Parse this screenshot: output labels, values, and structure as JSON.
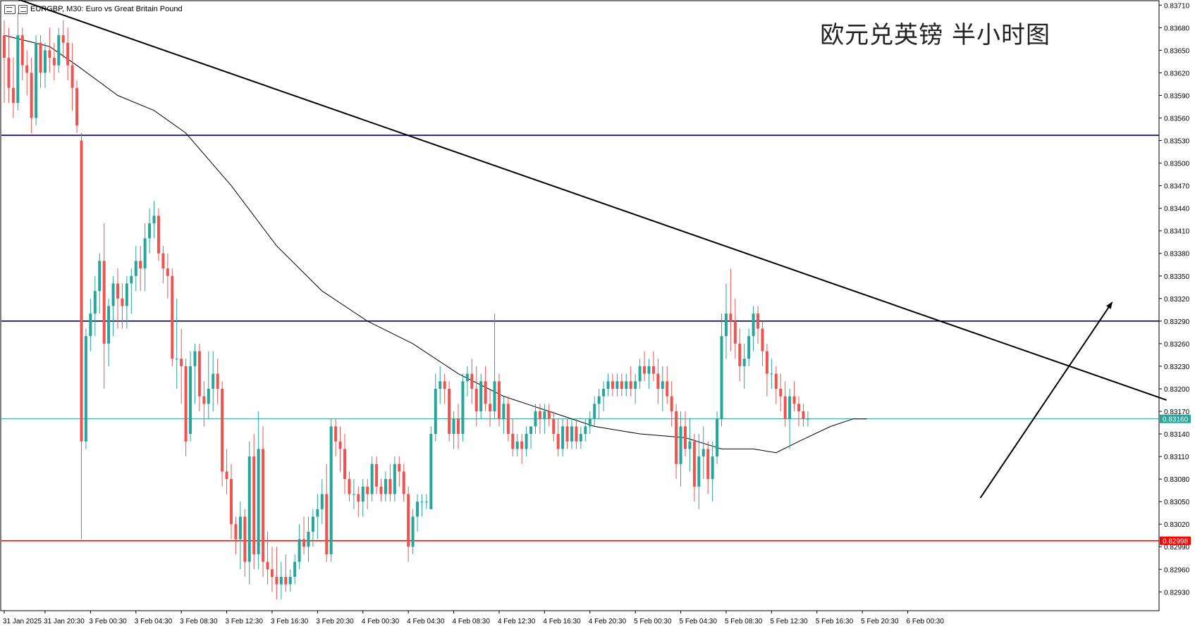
{
  "header": {
    "title": "EURGBP, M30:  Euro vs Great Britain Pound",
    "icons": [
      "chart-menu-icon",
      "object-list-icon"
    ]
  },
  "watermark": "欧元兑英镑 半小时图",
  "colors": {
    "bull": "#26a69a",
    "bear": "#ef5350",
    "ma": "#000000",
    "trendline": "#000000",
    "resistance": "#000080",
    "support": "#ff0000",
    "current_price_line": "#26a69a",
    "price_label_bg_current": "#26a69a",
    "price_label_bg_support": "#ff0000"
  },
  "chart_data": {
    "type": "candlestick",
    "title": "EURGBP, M30: Euro vs Great Britain Pound",
    "symbol": "EURGBP",
    "timeframe": "M30",
    "y_axis": {
      "position": "right",
      "ylim": [
        0.82905,
        0.83715
      ],
      "ticks": [
        "0.83710",
        "0.83680",
        "0.83650",
        "0.83620",
        "0.83590",
        "0.83560",
        "0.83530",
        "0.83500",
        "0.83470",
        "0.83440",
        "0.83410",
        "0.83380",
        "0.83350",
        "0.83320",
        "0.83290",
        "0.83260",
        "0.83230",
        "0.83200",
        "0.83170",
        "0.83140",
        "0.83110",
        "0.83080",
        "0.83050",
        "0.83020",
        "0.82990",
        "0.82960",
        "0.82930"
      ]
    },
    "x_axis": {
      "position": "bottom",
      "labels": [
        {
          "i": 0,
          "text": "31 Jan 2025"
        },
        {
          "i": 9,
          "text": "31 Jan 20:30"
        },
        {
          "i": 19,
          "text": "3 Feb 00:30"
        },
        {
          "i": 29,
          "text": "3 Feb 04:30"
        },
        {
          "i": 39,
          "text": "3 Feb 08:30"
        },
        {
          "i": 49,
          "text": "3 Feb 12:30"
        },
        {
          "i": 59,
          "text": "3 Feb 16:30"
        },
        {
          "i": 69,
          "text": "3 Feb 20:30"
        },
        {
          "i": 79,
          "text": "4 Feb 00:30"
        },
        {
          "i": 89,
          "text": "4 Feb 04:30"
        },
        {
          "i": 99,
          "text": "4 Feb 08:30"
        },
        {
          "i": 109,
          "text": "4 Feb 12:30"
        },
        {
          "i": 119,
          "text": "4 Feb 16:30"
        },
        {
          "i": 129,
          "text": "4 Feb 20:30"
        },
        {
          "i": 139,
          "text": "5 Feb 00:30"
        },
        {
          "i": 149,
          "text": "5 Feb 04:30"
        },
        {
          "i": 159,
          "text": "5 Feb 08:30"
        },
        {
          "i": 169,
          "text": "5 Feb 12:30"
        },
        {
          "i": 179,
          "text": "5 Feb 16:30"
        },
        {
          "i": 189,
          "text": "5 Feb 20:30"
        },
        {
          "i": 199,
          "text": "6 Feb 00:30"
        }
      ]
    },
    "candles": [
      [
        0.8367,
        0.8369,
        0.8358,
        0.8364
      ],
      [
        0.8364,
        0.8368,
        0.8358,
        0.836
      ],
      [
        0.836,
        0.8364,
        0.8356,
        0.8358
      ],
      [
        0.8358,
        0.837,
        0.8357,
        0.8367
      ],
      [
        0.8367,
        0.8368,
        0.8361,
        0.8363
      ],
      [
        0.8363,
        0.8365,
        0.8359,
        0.8362
      ],
      [
        0.8362,
        0.8364,
        0.8354,
        0.8356
      ],
      [
        0.8356,
        0.8367,
        0.8355,
        0.8366
      ],
      [
        0.8366,
        0.8367,
        0.836,
        0.8362
      ],
      [
        0.8362,
        0.8366,
        0.836,
        0.8365
      ],
      [
        0.8365,
        0.8368,
        0.8362,
        0.8364
      ],
      [
        0.8364,
        0.8366,
        0.8361,
        0.8363
      ],
      [
        0.8363,
        0.8368,
        0.8362,
        0.8367
      ],
      [
        0.8367,
        0.8369,
        0.8364,
        0.8366
      ],
      [
        0.8366,
        0.8368,
        0.8361,
        0.8363
      ],
      [
        0.8363,
        0.8366,
        0.8357,
        0.836
      ],
      [
        0.836,
        0.8361,
        0.8354,
        0.8355
      ],
      [
        0.8353,
        0.8354,
        0.83,
        0.8313
      ],
      [
        0.8313,
        0.8328,
        0.8312,
        0.8327
      ],
      [
        0.8327,
        0.8332,
        0.8325,
        0.833
      ],
      [
        0.833,
        0.8335,
        0.8327,
        0.8333
      ],
      [
        0.8333,
        0.8338,
        0.833,
        0.8337
      ],
      [
        0.8337,
        0.8342,
        0.832,
        0.8326
      ],
      [
        0.8326,
        0.8332,
        0.8323,
        0.8331
      ],
      [
        0.8331,
        0.8335,
        0.8327,
        0.8334
      ],
      [
        0.8334,
        0.8336,
        0.8328,
        0.8332
      ],
      [
        0.8332,
        0.8334,
        0.8328,
        0.8331
      ],
      [
        0.8331,
        0.8335,
        0.8328,
        0.8334
      ],
      [
        0.8334,
        0.8336,
        0.833,
        0.8335
      ],
      [
        0.8335,
        0.8339,
        0.8333,
        0.8337
      ],
      [
        0.8337,
        0.8339,
        0.8333,
        0.8336
      ],
      [
        0.8336,
        0.8342,
        0.8333,
        0.834
      ],
      [
        0.834,
        0.8344,
        0.8338,
        0.8342
      ],
      [
        0.8342,
        0.8345,
        0.834,
        0.8343
      ],
      [
        0.8343,
        0.8344,
        0.8337,
        0.8338
      ],
      [
        0.8338,
        0.8339,
        0.8334,
        0.8336
      ],
      [
        0.8336,
        0.8338,
        0.8332,
        0.8335
      ],
      [
        0.8335,
        0.8336,
        0.8323,
        0.8324
      ],
      [
        0.8324,
        0.8332,
        0.832,
        0.8324
      ],
      [
        0.8324,
        0.8328,
        0.8318,
        0.8323
      ],
      [
        0.8323,
        0.8324,
        0.8311,
        0.8313
      ],
      [
        0.8314,
        0.8325,
        0.8313,
        0.8323
      ],
      [
        0.8323,
        0.8326,
        0.8318,
        0.8325
      ],
      [
        0.8325,
        0.8326,
        0.8317,
        0.8319
      ],
      [
        0.8319,
        0.8321,
        0.8315,
        0.8318
      ],
      [
        0.8318,
        0.8325,
        0.8316,
        0.832
      ],
      [
        0.832,
        0.8325,
        0.8317,
        0.8322
      ],
      [
        0.8322,
        0.8324,
        0.8318,
        0.832
      ],
      [
        0.832,
        0.8321,
        0.8307,
        0.8309
      ],
      [
        0.8309,
        0.8312,
        0.8306,
        0.8308
      ],
      [
        0.8308,
        0.831,
        0.83,
        0.8302
      ],
      [
        0.8302,
        0.8303,
        0.8298,
        0.83
      ],
      [
        0.83,
        0.8305,
        0.8296,
        0.8303
      ],
      [
        0.8303,
        0.8304,
        0.8295,
        0.8297
      ],
      [
        0.8297,
        0.8313,
        0.8294,
        0.8311
      ],
      [
        0.8311,
        0.8314,
        0.8296,
        0.8298
      ],
      [
        0.8298,
        0.8317,
        0.8296,
        0.8312
      ],
      [
        0.8312,
        0.8315,
        0.8295,
        0.8297
      ],
      [
        0.8297,
        0.8301,
        0.8294,
        0.8296
      ],
      [
        0.8296,
        0.8299,
        0.8293,
        0.8295
      ],
      [
        0.8295,
        0.8299,
        0.8292,
        0.8294
      ],
      [
        0.8294,
        0.8297,
        0.8292,
        0.8295
      ],
      [
        0.8295,
        0.8298,
        0.8293,
        0.8294
      ],
      [
        0.8294,
        0.8296,
        0.8293,
        0.8295
      ],
      [
        0.8295,
        0.8298,
        0.8294,
        0.8297
      ],
      [
        0.8297,
        0.8302,
        0.8296,
        0.83
      ],
      [
        0.83,
        0.8303,
        0.8298,
        0.8299
      ],
      [
        0.8299,
        0.8303,
        0.8297,
        0.8301
      ],
      [
        0.8301,
        0.8304,
        0.8299,
        0.8303
      ],
      [
        0.8303,
        0.8306,
        0.83,
        0.8304
      ],
      [
        0.8304,
        0.8308,
        0.8302,
        0.8306
      ],
      [
        0.8306,
        0.831,
        0.8297,
        0.8298
      ],
      [
        0.8298,
        0.8316,
        0.8297,
        0.8315
      ],
      [
        0.8315,
        0.8316,
        0.8311,
        0.8313
      ],
      [
        0.8313,
        0.8315,
        0.8309,
        0.8312
      ],
      [
        0.8312,
        0.8314,
        0.8306,
        0.8308
      ],
      [
        0.8308,
        0.8309,
        0.8305,
        0.8306
      ],
      [
        0.8306,
        0.8308,
        0.8304,
        0.8306
      ],
      [
        0.8306,
        0.8307,
        0.8303,
        0.8305
      ],
      [
        0.8305,
        0.8308,
        0.8303,
        0.8307
      ],
      [
        0.8307,
        0.8308,
        0.8304,
        0.8306
      ],
      [
        0.8306,
        0.8311,
        0.8305,
        0.831
      ],
      [
        0.831,
        0.8311,
        0.8306,
        0.8307
      ],
      [
        0.8307,
        0.8308,
        0.8305,
        0.8306
      ],
      [
        0.8306,
        0.8309,
        0.8305,
        0.8308
      ],
      [
        0.8308,
        0.831,
        0.8305,
        0.8306
      ],
      [
        0.8306,
        0.8311,
        0.8305,
        0.831
      ],
      [
        0.831,
        0.8311,
        0.8307,
        0.8309
      ],
      [
        0.8309,
        0.831,
        0.8305,
        0.8306
      ],
      [
        0.8306,
        0.8307,
        0.8297,
        0.8299
      ],
      [
        0.8299,
        0.8304,
        0.8298,
        0.8303
      ],
      [
        0.8303,
        0.8306,
        0.8301,
        0.8305
      ],
      [
        0.8305,
        0.8306,
        0.8303,
        0.8305
      ],
      [
        0.8305,
        0.8306,
        0.8304,
        0.8305
      ],
      [
        0.8304,
        0.8315,
        0.8304,
        0.8314
      ],
      [
        0.8314,
        0.8322,
        0.8313,
        0.832
      ],
      [
        0.832,
        0.8323,
        0.8318,
        0.8321
      ],
      [
        0.8321,
        0.8322,
        0.8318,
        0.832
      ],
      [
        0.832,
        0.8321,
        0.8313,
        0.8314
      ],
      [
        0.8314,
        0.8317,
        0.8312,
        0.8316
      ],
      [
        0.8316,
        0.8318,
        0.8312,
        0.8314
      ],
      [
        0.8314,
        0.8322,
        0.8313,
        0.8321
      ],
      [
        0.8321,
        0.8323,
        0.8319,
        0.8322
      ],
      [
        0.8322,
        0.8324,
        0.8318,
        0.832
      ],
      [
        0.832,
        0.8323,
        0.8315,
        0.8317
      ],
      [
        0.8317,
        0.8322,
        0.8316,
        0.8321
      ],
      [
        0.8321,
        0.8323,
        0.8317,
        0.8318
      ],
      [
        0.8318,
        0.832,
        0.8315,
        0.8317
      ],
      [
        0.8317,
        0.833,
        0.8316,
        0.8321
      ],
      [
        0.8321,
        0.8322,
        0.8315,
        0.8316
      ],
      [
        0.8316,
        0.8319,
        0.8314,
        0.8318
      ],
      [
        0.8318,
        0.8319,
        0.8313,
        0.8314
      ],
      [
        0.8314,
        0.8316,
        0.8311,
        0.8312
      ],
      [
        0.8312,
        0.8314,
        0.8311,
        0.8313
      ],
      [
        0.8313,
        0.8314,
        0.831,
        0.8312
      ],
      [
        0.8312,
        0.8315,
        0.8311,
        0.8314
      ],
      [
        0.8314,
        0.8315,
        0.8312,
        0.8315
      ],
      [
        0.8315,
        0.8318,
        0.8314,
        0.8317
      ],
      [
        0.8317,
        0.8318,
        0.8314,
        0.8316
      ],
      [
        0.8316,
        0.8318,
        0.8314,
        0.8317
      ],
      [
        0.8317,
        0.8318,
        0.8315,
        0.8316
      ],
      [
        0.8316,
        0.8317,
        0.8313,
        0.8314
      ],
      [
        0.8314,
        0.8316,
        0.8311,
        0.8312
      ],
      [
        0.8312,
        0.8316,
        0.8311,
        0.8315
      ],
      [
        0.8315,
        0.8316,
        0.8312,
        0.8313
      ],
      [
        0.8313,
        0.8316,
        0.8312,
        0.8315
      ],
      [
        0.8315,
        0.8316,
        0.8312,
        0.8313
      ],
      [
        0.8313,
        0.8315,
        0.8312,
        0.8314
      ],
      [
        0.8314,
        0.8316,
        0.8313,
        0.8315
      ],
      [
        0.8315,
        0.8317,
        0.8314,
        0.8316
      ],
      [
        0.8316,
        0.8319,
        0.8315,
        0.8318
      ],
      [
        0.8318,
        0.832,
        0.8316,
        0.8319
      ],
      [
        0.8319,
        0.8321,
        0.8317,
        0.832
      ],
      [
        0.832,
        0.8322,
        0.8319,
        0.8321
      ],
      [
        0.8321,
        0.8322,
        0.8319,
        0.832
      ],
      [
        0.832,
        0.8322,
        0.8319,
        0.8321
      ],
      [
        0.8321,
        0.8322,
        0.8319,
        0.832
      ],
      [
        0.832,
        0.8322,
        0.8319,
        0.8321
      ],
      [
        0.8321,
        0.8323,
        0.8319,
        0.832
      ],
      [
        0.832,
        0.8322,
        0.8318,
        0.8321
      ],
      [
        0.8321,
        0.8324,
        0.832,
        0.8323
      ],
      [
        0.8323,
        0.8325,
        0.8321,
        0.8322
      ],
      [
        0.8322,
        0.8324,
        0.832,
        0.8323
      ],
      [
        0.8323,
        0.8325,
        0.8321,
        0.8322
      ],
      [
        0.8322,
        0.8324,
        0.8318,
        0.832
      ],
      [
        0.832,
        0.8323,
        0.8317,
        0.8321
      ],
      [
        0.8321,
        0.8323,
        0.8318,
        0.8319
      ],
      [
        0.8319,
        0.8321,
        0.8315,
        0.8317
      ],
      [
        0.8317,
        0.8318,
        0.8308,
        0.831
      ],
      [
        0.831,
        0.8317,
        0.8307,
        0.8315
      ],
      [
        0.8315,
        0.8317,
        0.8311,
        0.8312
      ],
      [
        0.8312,
        0.8316,
        0.8309,
        0.8313
      ],
      [
        0.8313,
        0.8314,
        0.8305,
        0.8307
      ],
      [
        0.8307,
        0.8314,
        0.8304,
        0.8311
      ],
      [
        0.8311,
        0.8315,
        0.8308,
        0.8312
      ],
      [
        0.8312,
        0.8313,
        0.8306,
        0.8308
      ],
      [
        0.8308,
        0.8313,
        0.8305,
        0.8311
      ],
      [
        0.8311,
        0.8317,
        0.831,
        0.8316
      ],
      [
        0.8316,
        0.833,
        0.8315,
        0.8327
      ],
      [
        0.8327,
        0.8334,
        0.8324,
        0.833
      ],
      [
        0.833,
        0.8336,
        0.8325,
        0.8329
      ],
      [
        0.8329,
        0.8332,
        0.8324,
        0.8326
      ],
      [
        0.8326,
        0.8328,
        0.8321,
        0.8323
      ],
      [
        0.8323,
        0.8326,
        0.832,
        0.8324
      ],
      [
        0.8324,
        0.8328,
        0.8323,
        0.8327
      ],
      [
        0.8327,
        0.8331,
        0.8325,
        0.833
      ],
      [
        0.833,
        0.8331,
        0.8326,
        0.8328
      ],
      [
        0.8328,
        0.8329,
        0.8323,
        0.8325
      ],
      [
        0.8325,
        0.8326,
        0.8319,
        0.8322
      ],
      [
        0.8322,
        0.8324,
        0.832,
        0.8322
      ],
      [
        0.8322,
        0.8323,
        0.8318,
        0.832
      ],
      [
        0.832,
        0.8322,
        0.8317,
        0.8319
      ],
      [
        0.8319,
        0.8321,
        0.8315,
        0.8316
      ],
      [
        0.8316,
        0.832,
        0.8312,
        0.8319
      ],
      [
        0.8319,
        0.8321,
        0.8317,
        0.8318
      ],
      [
        0.8318,
        0.8319,
        0.8315,
        0.8317
      ],
      [
        0.8317,
        0.8318,
        0.8315,
        0.8316
      ],
      [
        0.8316,
        0.8317,
        0.8315,
        0.8316
      ]
    ],
    "moving_average": {
      "name": "",
      "points": [
        [
          0,
          0.8367
        ],
        [
          10,
          0.83655
        ],
        [
          16,
          0.8363
        ],
        [
          25,
          0.8359
        ],
        [
          33,
          0.8357
        ],
        [
          40,
          0.8354
        ],
        [
          50,
          0.8347
        ],
        [
          60,
          0.8339
        ],
        [
          70,
          0.8333
        ],
        [
          80,
          0.8329
        ],
        [
          90,
          0.8326
        ],
        [
          100,
          0.8322
        ],
        [
          110,
          0.8319
        ],
        [
          120,
          0.8317
        ],
        [
          130,
          0.8315
        ],
        [
          140,
          0.8314
        ],
        [
          150,
          0.83135
        ],
        [
          158,
          0.8312
        ],
        [
          165,
          0.8312
        ],
        [
          170,
          0.83115
        ],
        [
          175,
          0.8313
        ],
        [
          182,
          0.8315
        ],
        [
          187,
          0.8316
        ],
        [
          190,
          0.8316
        ]
      ]
    },
    "trendlines": [
      {
        "name": "descending-trendline",
        "x1": 2,
        "y1": 0.8372,
        "x2": 256,
        "y2": 0.83185
      },
      {
        "name": "projection-arrow",
        "x1": 215,
        "y1": 0.83055,
        "x2": 244,
        "y2": 0.83315,
        "arrow": true
      }
    ],
    "horizontal_lines": [
      {
        "name": "resistance-upper",
        "price": 0.83537,
        "color": "#000080"
      },
      {
        "name": "resistance-lower",
        "price": 0.8329,
        "color": "#000080"
      },
      {
        "name": "current-price",
        "price": 0.8316,
        "color": "#26a69a",
        "label": "0.83160"
      },
      {
        "name": "support",
        "price": 0.82998,
        "color": "#ff0000",
        "label": "0.82998"
      }
    ]
  }
}
